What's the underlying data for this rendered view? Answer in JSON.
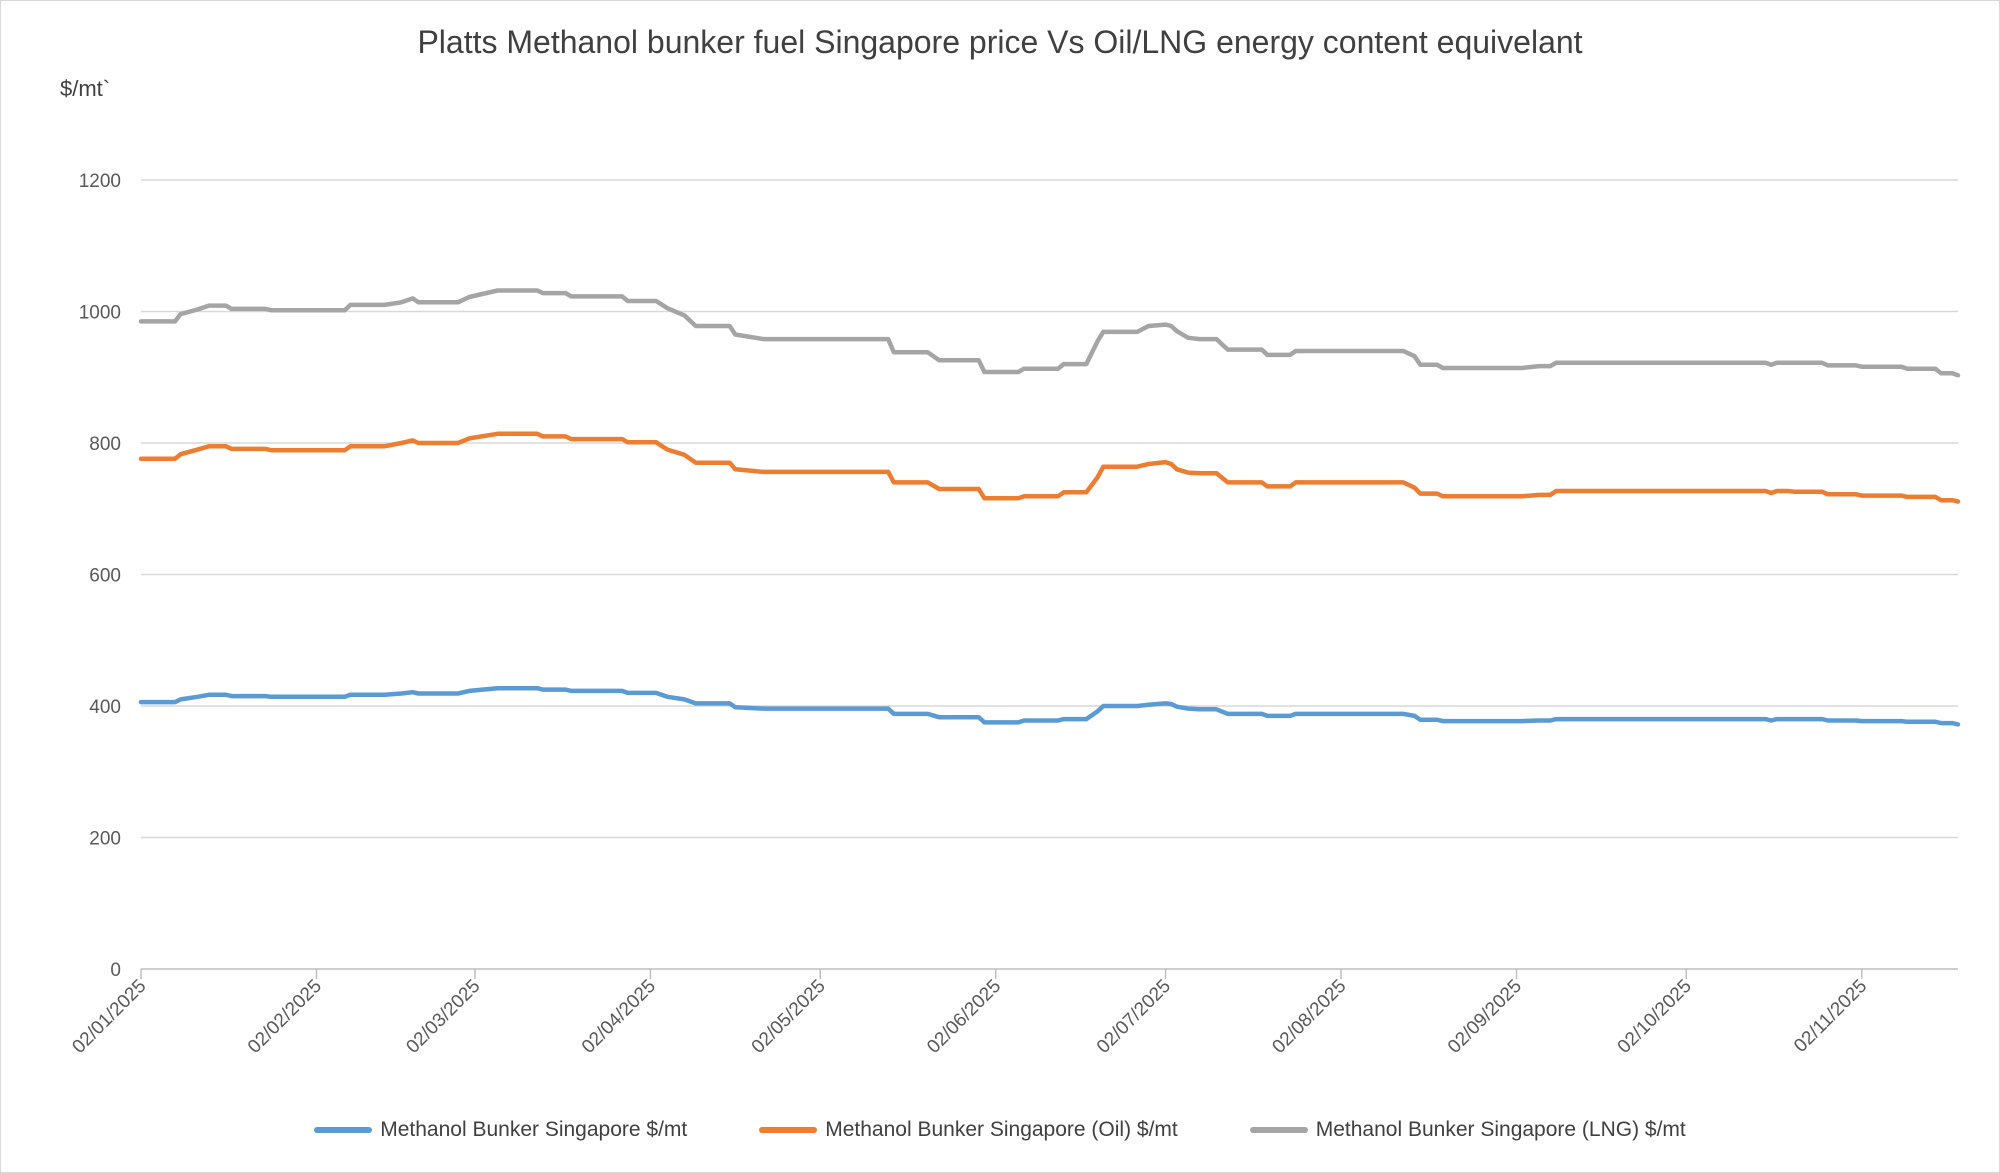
{
  "chart_data": {
    "type": "line",
    "title": "Platts Methanol bunker fuel Singapore price Vs Oil/LNG energy content equivelant",
    "ylabel": "$/mt`",
    "xlabel": "",
    "ylim": [
      0,
      1200
    ],
    "y_ticks": [
      0,
      200,
      400,
      600,
      800,
      1000,
      1200
    ],
    "x_tick_labels": [
      "02/01/2025",
      "02/02/2025",
      "02/03/2025",
      "02/04/2025",
      "02/05/2025",
      "02/06/2025",
      "02/07/2025",
      "02/08/2025",
      "02/09/2025",
      "02/10/2025",
      "02/11/2025"
    ],
    "x_tick_days": [
      0,
      31,
      59,
      90,
      120,
      151,
      181,
      212,
      243,
      273,
      304
    ],
    "x_range_days": [
      0,
      321
    ],
    "grid": "horizontal",
    "legend_position": "bottom",
    "series": [
      {
        "name": "Methanol Bunker Singapore $/mt",
        "color": "#5b9bd5",
        "points": [
          [
            0,
            406
          ],
          [
            6,
            406
          ],
          [
            7,
            410
          ],
          [
            10,
            414
          ],
          [
            12,
            417
          ],
          [
            15,
            417
          ],
          [
            16,
            415
          ],
          [
            22,
            415
          ],
          [
            23,
            414
          ],
          [
            36,
            414
          ],
          [
            37,
            417
          ],
          [
            43,
            417
          ],
          [
            46,
            419
          ],
          [
            48,
            421
          ],
          [
            49,
            419
          ],
          [
            56,
            419
          ],
          [
            58,
            423
          ],
          [
            63,
            427
          ],
          [
            70,
            427
          ],
          [
            71,
            425
          ],
          [
            75,
            425
          ],
          [
            76,
            423
          ],
          [
            85,
            423
          ],
          [
            86,
            420
          ],
          [
            91,
            420
          ],
          [
            93,
            414
          ],
          [
            96,
            410
          ],
          [
            98,
            404
          ],
          [
            104,
            404
          ],
          [
            105,
            398
          ],
          [
            110,
            396
          ],
          [
            132,
            396
          ],
          [
            133,
            388
          ],
          [
            139,
            388
          ],
          [
            141,
            383
          ],
          [
            148,
            383
          ],
          [
            149,
            375
          ],
          [
            155,
            375
          ],
          [
            156,
            378
          ],
          [
            162,
            378
          ],
          [
            163,
            380
          ],
          [
            167,
            380
          ],
          [
            169,
            392
          ],
          [
            170,
            400
          ],
          [
            176,
            400
          ],
          [
            178,
            402
          ],
          [
            181,
            404
          ],
          [
            182,
            403
          ],
          [
            183,
            399
          ],
          [
            185,
            396
          ],
          [
            187,
            395
          ],
          [
            190,
            395
          ],
          [
            192,
            388
          ],
          [
            198,
            388
          ],
          [
            199,
            385
          ],
          [
            203,
            385
          ],
          [
            204,
            388
          ],
          [
            223,
            388
          ],
          [
            225,
            385
          ],
          [
            226,
            379
          ],
          [
            229,
            379
          ],
          [
            230,
            377
          ],
          [
            244,
            377
          ],
          [
            247,
            378
          ],
          [
            249,
            378
          ],
          [
            250,
            380
          ],
          [
            287,
            380
          ],
          [
            288,
            378
          ],
          [
            289,
            380
          ],
          [
            291,
            380
          ],
          [
            292,
            380
          ],
          [
            297,
            380
          ],
          [
            298,
            378
          ],
          [
            303,
            378
          ],
          [
            304,
            377
          ],
          [
            311,
            377
          ],
          [
            312,
            376
          ],
          [
            317,
            376
          ],
          [
            318,
            374
          ],
          [
            320,
            374
          ],
          [
            321,
            372
          ]
        ]
      },
      {
        "name": "Methanol Bunker Singapore (Oil) $/mt",
        "color": "#ed7d31",
        "points": [
          [
            0,
            776
          ],
          [
            6,
            776
          ],
          [
            7,
            783
          ],
          [
            10,
            790
          ],
          [
            12,
            795
          ],
          [
            15,
            795
          ],
          [
            16,
            791
          ],
          [
            22,
            791
          ],
          [
            23,
            789
          ],
          [
            36,
            789
          ],
          [
            37,
            795
          ],
          [
            43,
            795
          ],
          [
            46,
            800
          ],
          [
            48,
            804
          ],
          [
            49,
            800
          ],
          [
            56,
            800
          ],
          [
            58,
            807
          ],
          [
            63,
            814
          ],
          [
            70,
            814
          ],
          [
            71,
            810
          ],
          [
            75,
            810
          ],
          [
            76,
            806
          ],
          [
            85,
            806
          ],
          [
            86,
            801
          ],
          [
            91,
            801
          ],
          [
            93,
            790
          ],
          [
            96,
            782
          ],
          [
            98,
            770
          ],
          [
            104,
            770
          ],
          [
            105,
            760
          ],
          [
            110,
            756
          ],
          [
            132,
            756
          ],
          [
            133,
            740
          ],
          [
            139,
            740
          ],
          [
            141,
            730
          ],
          [
            148,
            730
          ],
          [
            149,
            716
          ],
          [
            155,
            716
          ],
          [
            156,
            719
          ],
          [
            162,
            719
          ],
          [
            163,
            725
          ],
          [
            167,
            725
          ],
          [
            169,
            748
          ],
          [
            170,
            764
          ],
          [
            176,
            764
          ],
          [
            178,
            768
          ],
          [
            181,
            771
          ],
          [
            182,
            768
          ],
          [
            183,
            760
          ],
          [
            185,
            755
          ],
          [
            187,
            754
          ],
          [
            190,
            754
          ],
          [
            192,
            740
          ],
          [
            198,
            740
          ],
          [
            199,
            734
          ],
          [
            203,
            734
          ],
          [
            204,
            740
          ],
          [
            223,
            740
          ],
          [
            225,
            732
          ],
          [
            226,
            723
          ],
          [
            229,
            723
          ],
          [
            230,
            719
          ],
          [
            244,
            719
          ],
          [
            247,
            721
          ],
          [
            249,
            721
          ],
          [
            250,
            727
          ],
          [
            287,
            727
          ],
          [
            288,
            724
          ],
          [
            289,
            727
          ],
          [
            291,
            727
          ],
          [
            292,
            726
          ],
          [
            297,
            726
          ],
          [
            298,
            722
          ],
          [
            303,
            722
          ],
          [
            304,
            720
          ],
          [
            311,
            720
          ],
          [
            312,
            718
          ],
          [
            317,
            718
          ],
          [
            318,
            713
          ],
          [
            320,
            713
          ],
          [
            321,
            711
          ]
        ]
      },
      {
        "name": "Methanol Bunker Singapore (LNG) $/mt",
        "color": "#a5a5a5",
        "points": [
          [
            0,
            985
          ],
          [
            6,
            985
          ],
          [
            7,
            996
          ],
          [
            10,
            1003
          ],
          [
            12,
            1009
          ],
          [
            15,
            1009
          ],
          [
            16,
            1004
          ],
          [
            22,
            1004
          ],
          [
            23,
            1002
          ],
          [
            36,
            1002
          ],
          [
            37,
            1010
          ],
          [
            43,
            1010
          ],
          [
            46,
            1014
          ],
          [
            48,
            1020
          ],
          [
            49,
            1014
          ],
          [
            56,
            1014
          ],
          [
            58,
            1022
          ],
          [
            63,
            1032
          ],
          [
            70,
            1032
          ],
          [
            71,
            1028
          ],
          [
            75,
            1028
          ],
          [
            76,
            1023
          ],
          [
            85,
            1023
          ],
          [
            86,
            1016
          ],
          [
            91,
            1016
          ],
          [
            93,
            1005
          ],
          [
            96,
            994
          ],
          [
            98,
            978
          ],
          [
            104,
            978
          ],
          [
            105,
            965
          ],
          [
            110,
            958
          ],
          [
            132,
            958
          ],
          [
            133,
            938
          ],
          [
            139,
            938
          ],
          [
            141,
            926
          ],
          [
            148,
            926
          ],
          [
            149,
            908
          ],
          [
            155,
            908
          ],
          [
            156,
            913
          ],
          [
            162,
            913
          ],
          [
            163,
            920
          ],
          [
            167,
            920
          ],
          [
            169,
            955
          ],
          [
            170,
            969
          ],
          [
            176,
            969
          ],
          [
            178,
            978
          ],
          [
            181,
            980
          ],
          [
            182,
            978
          ],
          [
            183,
            970
          ],
          [
            185,
            960
          ],
          [
            187,
            958
          ],
          [
            190,
            958
          ],
          [
            192,
            942
          ],
          [
            198,
            942
          ],
          [
            199,
            934
          ],
          [
            203,
            934
          ],
          [
            204,
            940
          ],
          [
            223,
            940
          ],
          [
            225,
            932
          ],
          [
            226,
            919
          ],
          [
            229,
            919
          ],
          [
            230,
            914
          ],
          [
            244,
            914
          ],
          [
            247,
            917
          ],
          [
            249,
            917
          ],
          [
            250,
            922
          ],
          [
            287,
            922
          ],
          [
            288,
            919
          ],
          [
            289,
            922
          ],
          [
            291,
            922
          ],
          [
            292,
            922
          ],
          [
            297,
            922
          ],
          [
            298,
            918
          ],
          [
            303,
            918
          ],
          [
            304,
            916
          ],
          [
            311,
            916
          ],
          [
            312,
            913
          ],
          [
            317,
            913
          ],
          [
            318,
            906
          ],
          [
            320,
            906
          ],
          [
            321,
            903
          ]
        ]
      }
    ]
  }
}
